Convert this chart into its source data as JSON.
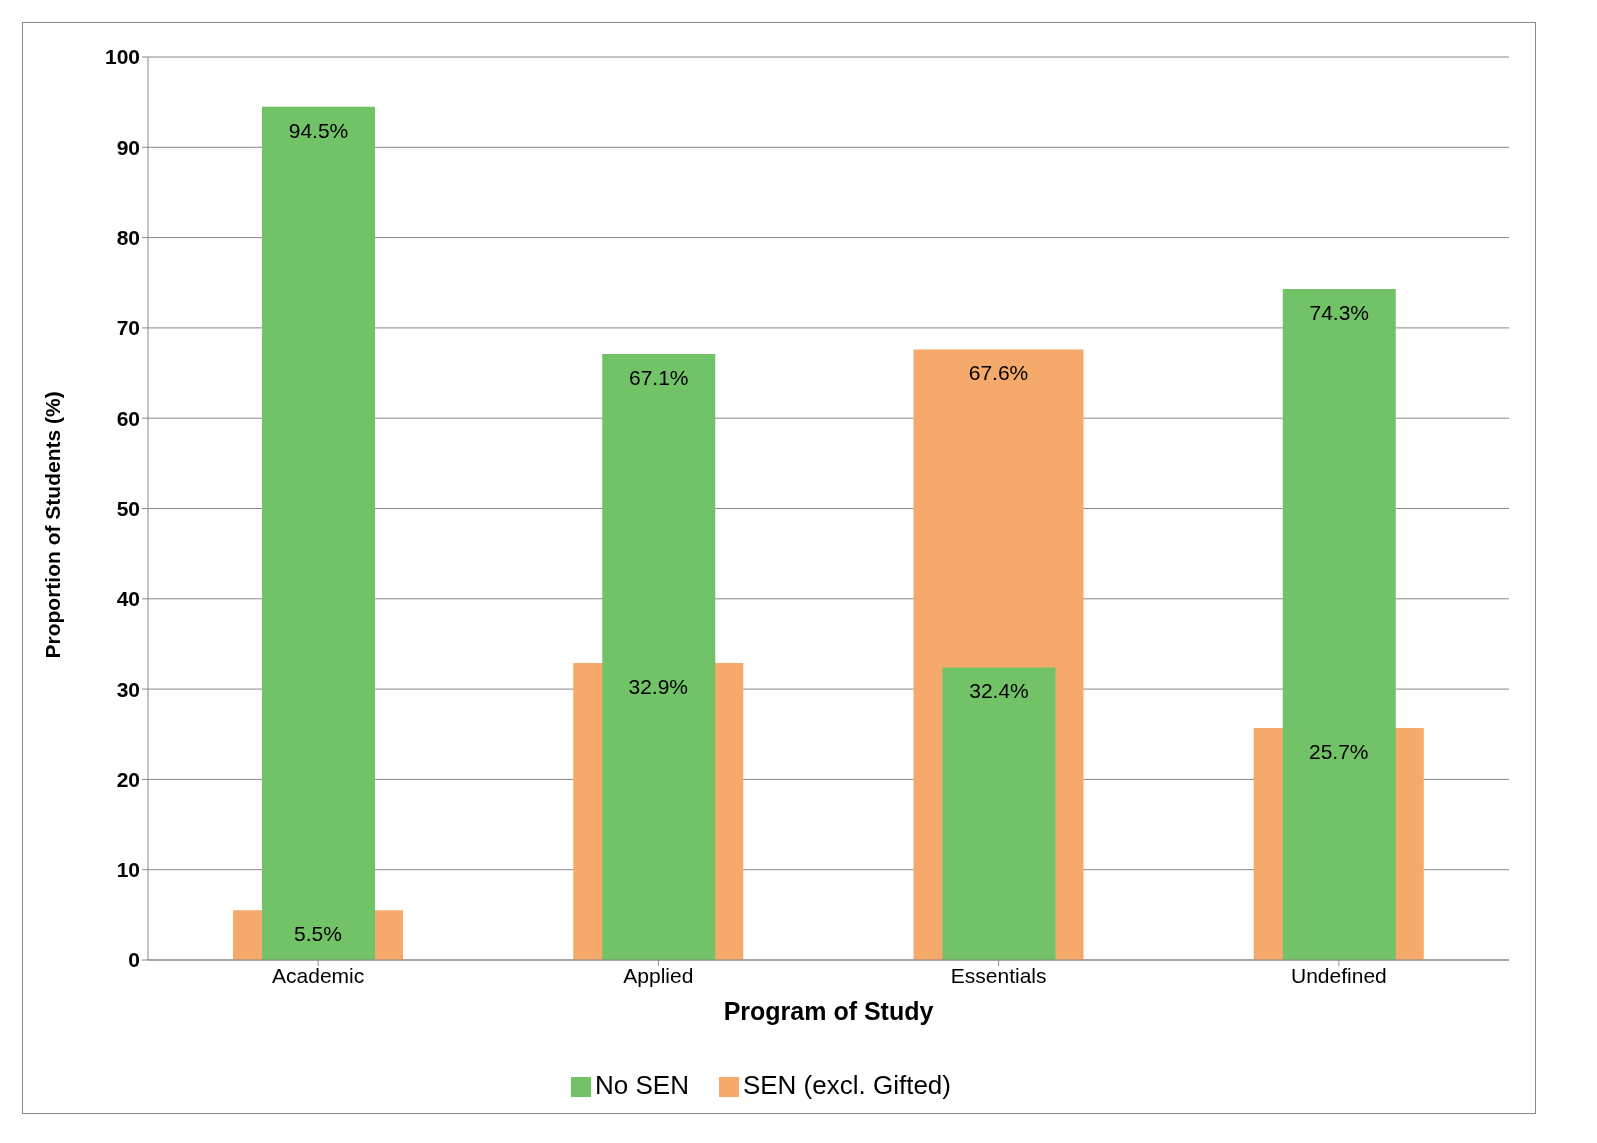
{
  "chart_data": {
    "type": "bar",
    "xlabel": "Program of Study",
    "ylabel": "Proportion of Students (%)",
    "categories": [
      "Academic",
      "Applied",
      "Essentials",
      "Undefined"
    ],
    "series": [
      {
        "name": "SEN (excl. Gifted)",
        "color": "#f5a96b",
        "values": [
          5.5,
          32.9,
          67.6,
          25.7
        ],
        "value_labels": [
          "5.5%",
          "32.9%",
          "67.6%",
          "25.7%"
        ]
      },
      {
        "name": "No SEN",
        "color": "#72c268",
        "values": [
          94.5,
          67.1,
          32.4,
          74.3
        ],
        "value_labels": [
          "94.5%",
          "67.1%",
          "32.4%",
          "74.3%"
        ]
      }
    ],
    "ylim": [
      0,
      100
    ],
    "yticks": [
      0,
      10,
      20,
      30,
      40,
      50,
      60,
      70,
      80,
      90,
      100
    ],
    "grid": "y",
    "legend": "bottom"
  }
}
